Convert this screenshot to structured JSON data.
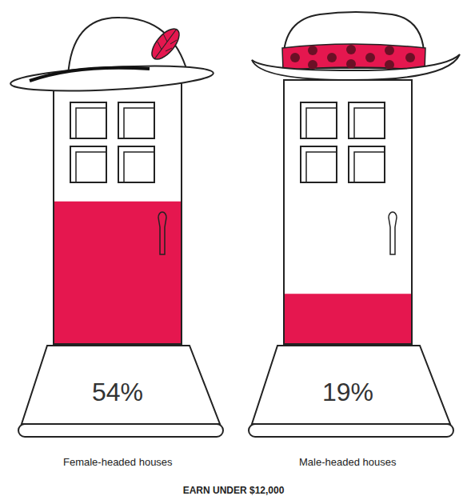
{
  "chart_data": {
    "type": "bar",
    "title": "EARN UNDER $12,000",
    "categories": [
      "Female-headed houses",
      "Male-headed houses"
    ],
    "values": [
      54,
      19
    ],
    "value_labels": [
      "54%",
      "19%"
    ],
    "data_labels": true,
    "color": "#e5174f",
    "ylim": [
      0,
      100
    ],
    "tick_labels": "x",
    "grid": false
  }
}
